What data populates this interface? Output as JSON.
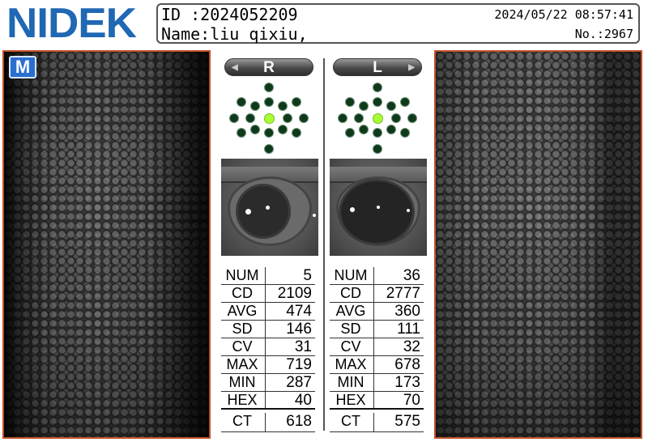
{
  "header": {
    "logo": "NIDEK",
    "id_label": "ID  :2024052209",
    "name_label": "Name:liu qixiu,",
    "datetime": "2024/05/22 08:57:41",
    "number": "No.:2967"
  },
  "mode_badge": "M",
  "right_eye": {
    "tab_label": "R",
    "stats": [
      {
        "key": "NUM",
        "value": "5"
      },
      {
        "key": "CD",
        "value": "2109"
      },
      {
        "key": "AVG",
        "value": "474"
      },
      {
        "key": "SD",
        "value": "146"
      },
      {
        "key": "CV",
        "value": "31"
      },
      {
        "key": "MAX",
        "value": "719"
      },
      {
        "key": "MIN",
        "value": "287"
      },
      {
        "key": "HEX",
        "value": "40"
      },
      {
        "key": "CT",
        "value": "618"
      }
    ]
  },
  "left_eye": {
    "tab_label": "L",
    "stats": [
      {
        "key": "NUM",
        "value": "36"
      },
      {
        "key": "CD",
        "value": "2777"
      },
      {
        "key": "AVG",
        "value": "360"
      },
      {
        "key": "SD",
        "value": "111"
      },
      {
        "key": "CV",
        "value": "32"
      },
      {
        "key": "MAX",
        "value": "678"
      },
      {
        "key": "MIN",
        "value": "173"
      },
      {
        "key": "HEX",
        "value": "70"
      },
      {
        "key": "CT",
        "value": "575"
      }
    ]
  },
  "colors": {
    "brand": "#1f68b4",
    "image_border": "#c0522a",
    "fixation_active": "#aaff33",
    "fixation_inactive": "#0e3a1a",
    "badge": "#2a6fd0"
  },
  "icons": {
    "tab_arrow_left": "triangle-left-icon",
    "tab_arrow_right": "triangle-right-icon"
  }
}
